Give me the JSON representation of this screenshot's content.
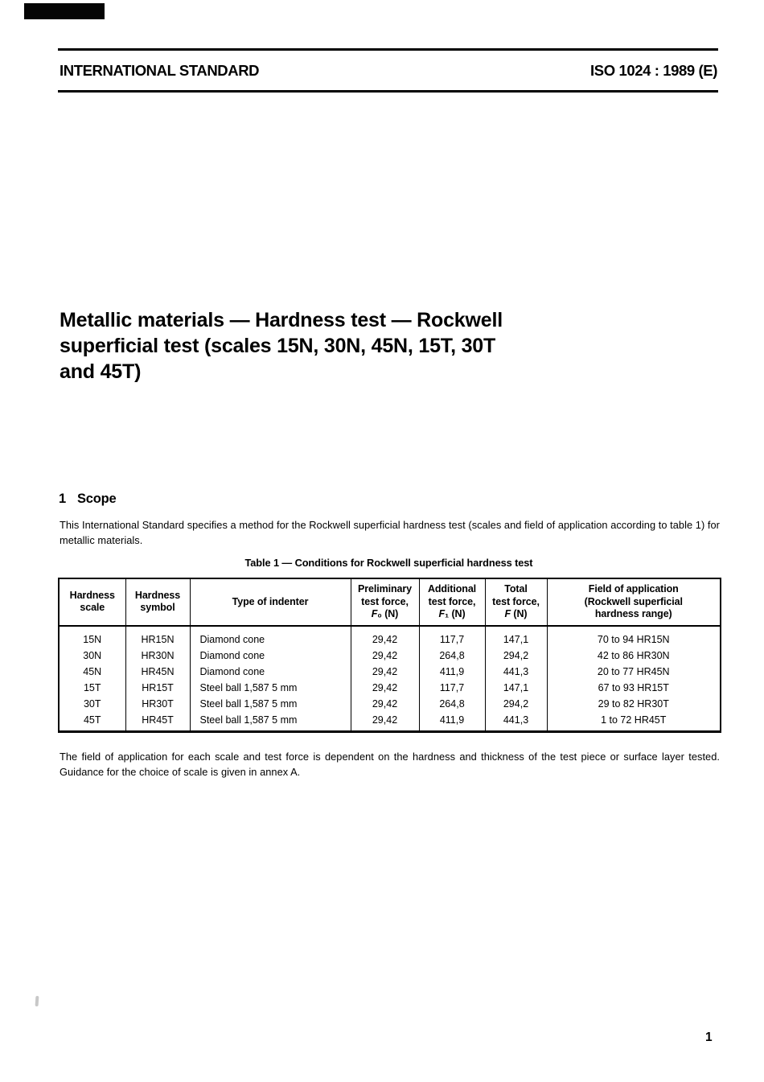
{
  "page": {
    "header": {
      "left_label": "INTERNATIONAL STANDARD",
      "right_label": "ISO 1024 : 1989 (E)"
    },
    "title_lines": [
      "Metallic materials — Hardness test — Rockwell",
      "superficial test (scales 15N, 30N, 45N, 15T, 30T",
      "and 45T)"
    ],
    "scope": {
      "number": "1",
      "heading": "Scope",
      "body": "This International Standard specifies a method for the Rockwell superficial hardness test (scales and field of application according to table 1) for metallic materials."
    },
    "table": {
      "caption": "Table 1 — Conditions for Rockwell superficial hardness test",
      "column_headers": [
        "Hardness\nscale",
        "Hardness\nsymbol",
        "Type of indenter",
        "Preliminary\ntest force,\nF₀ (N)",
        "Additional\ntest force,\nF₁ (N)",
        "Total\ntest force,\nF (N)",
        "Field of application\n(Rockwell superficial\nhardness range)"
      ],
      "rows": [
        [
          "15N",
          "HR15N",
          "Diamond cone",
          "29,42",
          "117,7",
          "147,1",
          "70 to 94 HR15N"
        ],
        [
          "30N",
          "HR30N",
          "Diamond cone",
          "29,42",
          "264,8",
          "294,2",
          "42 to 86 HR30N"
        ],
        [
          "45N",
          "HR45N",
          "Diamond cone",
          "29,42",
          "411,9",
          "441,3",
          "20 to 77 HR45N"
        ],
        [
          "15T",
          "HR15T",
          "Steel ball 1,587 5 mm",
          "29,42",
          "117,7",
          "147,1",
          "67 to 93 HR15T"
        ],
        [
          "30T",
          "HR30T",
          "Steel ball 1,587 5 mm",
          "29,42",
          "264,8",
          "294,2",
          "29 to 82 HR30T"
        ],
        [
          "45T",
          "HR45T",
          "Steel ball 1,587 5 mm",
          "29,42",
          "411,9",
          "441,3",
          "1 to 72 HR45T"
        ]
      ]
    },
    "note": "The field of application for each scale and test force is dependent on the hardness and thickness of the test piece or surface layer tested. Guidance for the choice of scale is given in annex A.",
    "page_number": "1"
  }
}
